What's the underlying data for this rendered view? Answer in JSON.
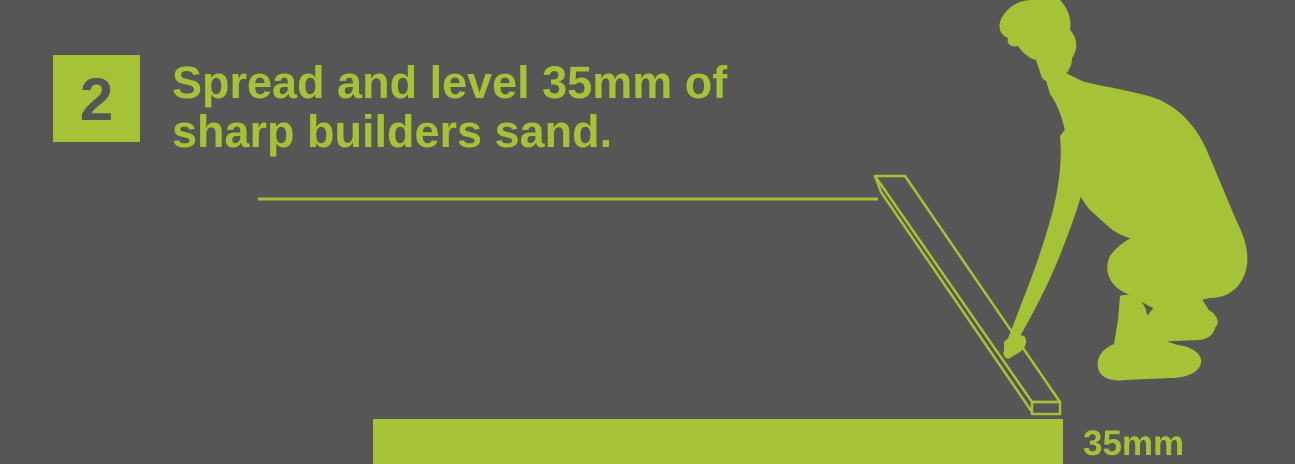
{
  "step": {
    "number": "2",
    "instruction_line1": "Spread and level 35mm of",
    "instruction_line2": "sharp builders sand."
  },
  "diagram": {
    "depth_label": "35mm",
    "icons": [
      "kneeling-person-icon",
      "screed-board-icon",
      "sand-layer-icon"
    ]
  },
  "colors": {
    "background": "#565656",
    "accent": "#a6c236"
  }
}
